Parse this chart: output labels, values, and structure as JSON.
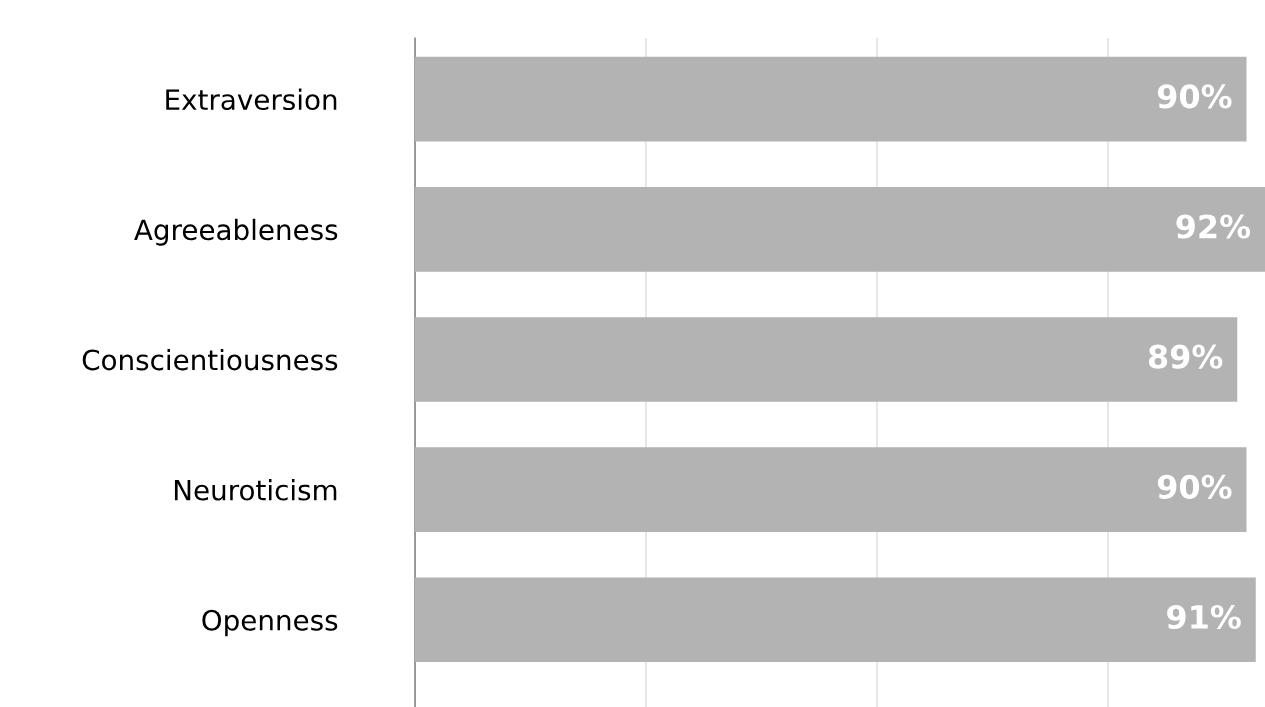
{
  "chart_data": {
    "type": "bar",
    "orientation": "horizontal",
    "categories": [
      "Extraversion",
      "Agreeableness",
      "Conscientiousness",
      "Neuroticism",
      "Openness"
    ],
    "values": [
      90,
      92,
      89,
      90,
      91
    ],
    "value_labels": [
      "90%",
      "92%",
      "89%",
      "90%",
      "91%"
    ],
    "color": "#b3b3b3",
    "xlim": [
      0,
      92
    ],
    "xticks": [
      {
        "value": 0,
        "label": null
      },
      {
        "value": 25,
        "label": null
      },
      {
        "value": 50,
        "label": null
      },
      {
        "value": 75,
        "label": null
      }
    ],
    "tick_labels": "y",
    "grid": "x"
  }
}
